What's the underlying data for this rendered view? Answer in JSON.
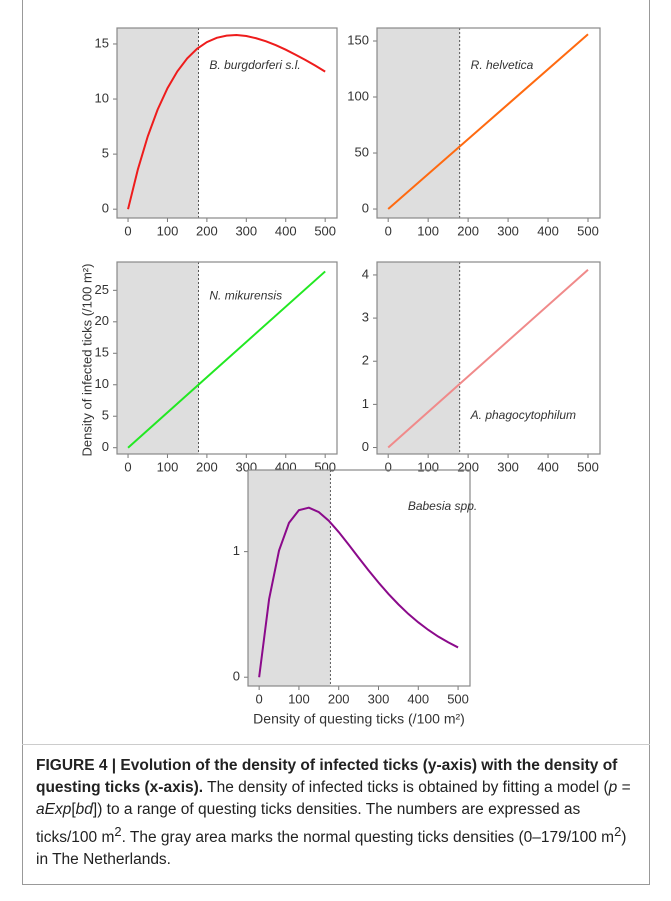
{
  "chart_data": [
    {
      "type": "line",
      "annotation": "B. burgdorferi s.l.",
      "color": "#ee1c1c",
      "x": [
        0,
        25,
        50,
        75,
        100,
        125,
        150,
        175,
        200,
        225,
        250,
        275,
        300,
        325,
        350,
        375,
        400,
        425,
        450,
        475,
        500
      ],
      "values": [
        0,
        3.62,
        6.61,
        9.04,
        10.98,
        12.51,
        13.69,
        14.56,
        15.17,
        15.56,
        15.76,
        15.81,
        15.72,
        15.52,
        15.24,
        14.89,
        14.48,
        14.02,
        13.54,
        13.03,
        12.49
      ],
      "xlim": [
        -28,
        530
      ],
      "ylim": [
        -0.8,
        16.45
      ],
      "xticks": [
        0,
        100,
        200,
        300,
        400,
        500
      ],
      "yticks": [
        0,
        5,
        10,
        15
      ],
      "shade_end": 179
    },
    {
      "type": "line",
      "annotation": "R. helvetica",
      "color": "#ff6a10",
      "x": [
        0,
        500
      ],
      "values": [
        0,
        156
      ],
      "xlim": [
        -28,
        530
      ],
      "ylim": [
        -8,
        161.6
      ],
      "xticks": [
        0,
        100,
        200,
        300,
        400,
        500
      ],
      "yticks": [
        0,
        50,
        100,
        150
      ],
      "shade_end": 179
    },
    {
      "type": "line",
      "annotation": "N. mikurensis",
      "color": "#22e822",
      "x": [
        0,
        500
      ],
      "values": [
        0,
        28
      ],
      "xlim": [
        -28,
        530
      ],
      "ylim": [
        -1,
        29.5
      ],
      "xticks": [
        0,
        100,
        200,
        300,
        400,
        500
      ],
      "yticks": [
        0,
        5,
        10,
        15,
        20,
        25
      ],
      "shade_end": 179
    },
    {
      "type": "line",
      "annotation": "A. phagocytophilum",
      "color": "#f08a8a",
      "x": [
        0,
        500
      ],
      "values": [
        0,
        4.12
      ],
      "xlim": [
        -28,
        530
      ],
      "ylim": [
        -0.15,
        4.3
      ],
      "xticks": [
        0,
        100,
        200,
        300,
        400,
        500
      ],
      "yticks": [
        0,
        1,
        2,
        3,
        4
      ],
      "shade_end": 179
    },
    {
      "type": "line",
      "annotation": "Babesia spp.",
      "color": "#8b0a8b",
      "xlabel": "Density of questing ticks (/100 m²)",
      "x": [
        0,
        25,
        50,
        75,
        100,
        125,
        150,
        175,
        200,
        225,
        250,
        275,
        300,
        325,
        350,
        375,
        400,
        425,
        450,
        475,
        500
      ],
      "values": [
        0,
        0.621,
        1.009,
        1.229,
        1.33,
        1.35,
        1.315,
        1.246,
        1.156,
        1.056,
        0.952,
        0.851,
        0.754,
        0.663,
        0.58,
        0.504,
        0.437,
        0.377,
        0.324,
        0.278,
        0.237
      ],
      "xlim": [
        -28,
        530
      ],
      "ylim": [
        -0.07,
        1.65
      ],
      "xticks": [
        0,
        100,
        200,
        300,
        400,
        500
      ],
      "yticks": [
        0,
        1
      ],
      "shade_end": 179
    }
  ],
  "shared_ylabel": "Density of infected ticks (/100 m²)",
  "caption": {
    "title": "FIGURE 4 | Evolution of the density of infected ticks (y-axis) with the density of questing ticks (x-axis).",
    "body": [
      "The density of infected ticks is obtained by fitting a model (",
      "p",
      " = ",
      "aExp",
      "[",
      "bd",
      "]) to a range of questing ticks densities. The numbers are expressed as ticks/100 m",
      "2",
      ". The gray area marks the normal questing ticks densities (0–179/100 m",
      "2",
      ") in The Netherlands."
    ]
  }
}
